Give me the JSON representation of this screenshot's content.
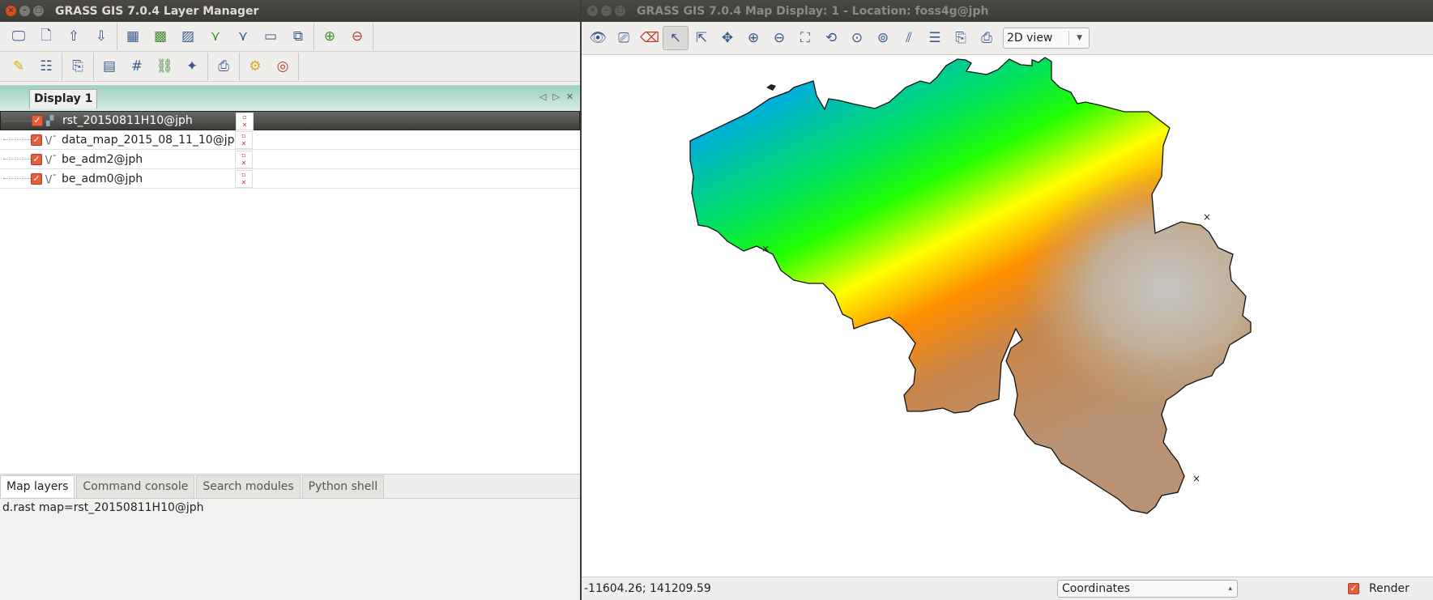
{
  "layer_manager": {
    "title": "GRASS GIS 7.0.4 Layer Manager",
    "display_tab": "Display 1",
    "layers": [
      {
        "name": "rst_20150811H10@jph",
        "icon": "raster-icon",
        "checked": true,
        "selected": true
      },
      {
        "name": "data_map_2015_08_11_10@jph",
        "icon": "vector-icon",
        "checked": true,
        "selected": false
      },
      {
        "name": "be_adm2@jph",
        "icon": "vector-icon",
        "checked": true,
        "selected": false
      },
      {
        "name": "be_adm0@jph",
        "icon": "vector-icon",
        "checked": true,
        "selected": false
      }
    ],
    "bottom_tabs": [
      "Map layers",
      "Command console",
      "Search modules",
      "Python shell"
    ],
    "status": "d.rast map=rst_20150811H10@jph"
  },
  "map_display": {
    "title": "GRASS GIS 7.0.4 Map Display: 1 - Location: foss4g@jph",
    "view_mode": "2D view",
    "coordinates": "-11604.26; 141209.59",
    "status_mode": "Coordinates",
    "render_label": "Render",
    "render_checked": true
  },
  "colors": {
    "accent": "#e2603a",
    "ramp": [
      "#00a3e0",
      "#00ff00",
      "#ffff00",
      "#ff8000",
      "#b8860b",
      "#c0c0c0"
    ]
  }
}
